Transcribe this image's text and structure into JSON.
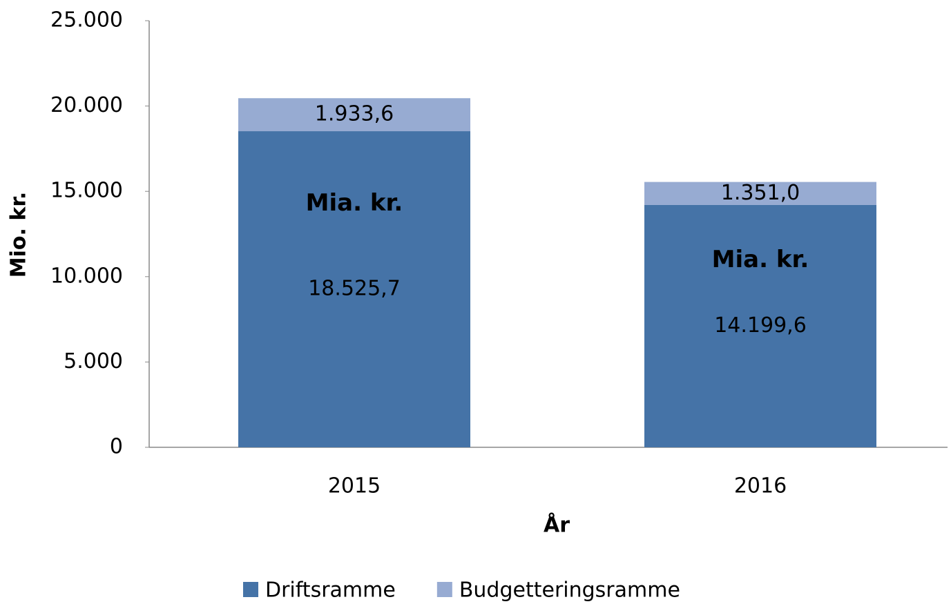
{
  "chart_data": {
    "type": "stacked_bar",
    "x_label": "År",
    "y_label": "Mio. kr.",
    "categories": [
      "2015",
      "2016"
    ],
    "series": [
      {
        "name": "Driftsramme",
        "color": "#4573a7",
        "values": [
          18525.7,
          14199.6
        ],
        "value_labels": [
          "18.525,7",
          "14.199,6"
        ]
      },
      {
        "name": "Budgetteringsramme",
        "color": "#97abd2",
        "values": [
          1933.6,
          1351.0
        ],
        "value_labels": [
          "1.933,6",
          "1.351,0"
        ]
      }
    ],
    "annotations": [
      "Mia. kr.",
      "Mia. kr."
    ],
    "ylim": [
      0,
      25000
    ],
    "yticks": [
      0,
      {
        "value": 5000,
        "label": "5.000"
      },
      {
        "value": 10000,
        "label": "10.000"
      },
      {
        "value": 15000,
        "label": "15.000"
      },
      {
        "value": 20000,
        "label": "20.000"
      },
      {
        "value": 25000,
        "label": "25.000"
      }
    ],
    "grid": false,
    "legend": "bottom"
  }
}
